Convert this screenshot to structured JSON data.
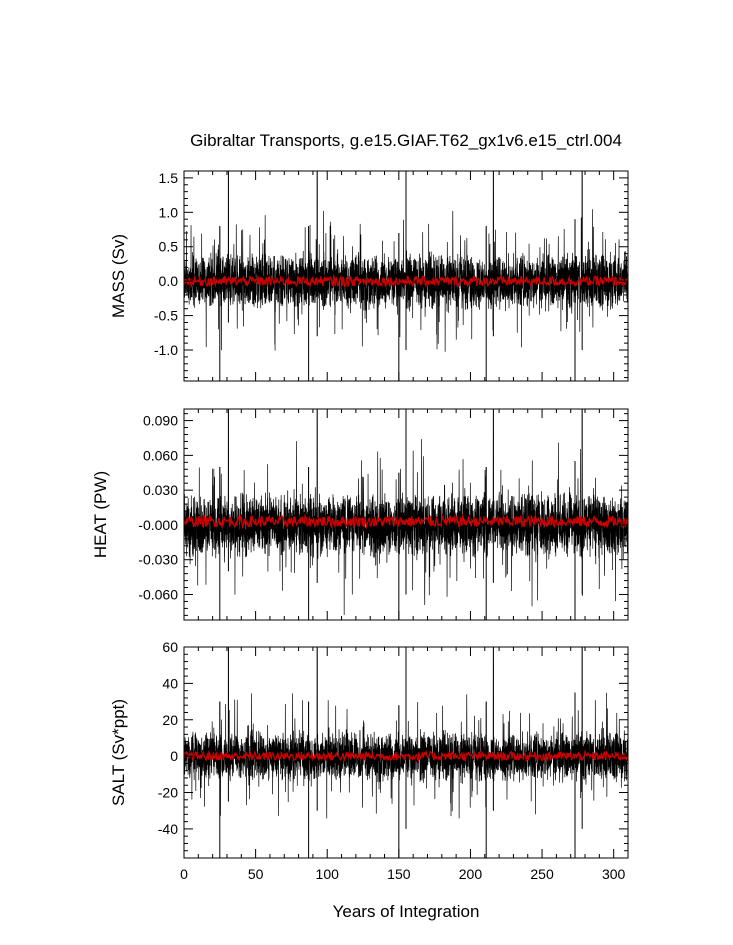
{
  "figure": {
    "title": "Gibraltar Transports, g.e15.GIAF.T62_gx1v6.e15_ctrl.004",
    "xlabel": "Years of Integration"
  },
  "chart_data": [
    {
      "type": "line",
      "title": "Gibraltar Transports, g.e15.GIAF.T62_gx1v6.e15_ctrl.004",
      "ylabel": "MASS (Sv)",
      "xlabel": "",
      "xlim": [
        0,
        310
      ],
      "ylim": [
        -1.45,
        1.6
      ],
      "xticks": [
        0,
        50,
        100,
        150,
        200,
        250,
        300
      ],
      "yticks": [
        -1.0,
        -0.5,
        0.0,
        0.5,
        1.0,
        1.5
      ],
      "ytick_labels": [
        "-1.0",
        "-0.5",
        "0.0",
        "0.5",
        "1.0",
        "1.5"
      ],
      "ymajor_step": 0.5,
      "yminor_step": 0.1,
      "typical_envelope": [
        -0.3,
        0.3
      ],
      "bursts": [
        {
          "x": 31,
          "up": 1.6,
          "down": -0.6
        },
        {
          "x": 25,
          "up": 0.8,
          "down": -1.45
        },
        {
          "x": 93,
          "up": 1.6,
          "down": -0.8
        },
        {
          "x": 87,
          "up": 0.8,
          "down": -1.45
        },
        {
          "x": 155,
          "up": 1.6,
          "down": -1.0
        },
        {
          "x": 150,
          "up": 0.7,
          "down": -1.45
        },
        {
          "x": 216,
          "up": 1.6,
          "down": -0.8
        },
        {
          "x": 211,
          "up": 0.8,
          "down": -1.45
        },
        {
          "x": 278,
          "up": 1.6,
          "down": -1.0
        },
        {
          "x": 273,
          "up": 0.9,
          "down": -1.45
        }
      ],
      "series": [
        {
          "color": "#000000",
          "description_kind": "monthly",
          "approx_values": [
            [
              0,
              0.2
            ],
            [
              20,
              -0.2
            ],
            [
              50,
              0.1
            ],
            [
              100,
              -0.1
            ],
            [
              150,
              0.05
            ],
            [
              200,
              -0.05
            ],
            [
              250,
              0.1
            ],
            [
              300,
              -0.1
            ],
            [
              310,
              0.0
            ]
          ]
        },
        {
          "color": "#cc0000",
          "description_kind": "annual",
          "approx_values": [
            [
              0,
              0.0
            ],
            [
              50,
              0.0
            ],
            [
              100,
              0.0
            ],
            [
              150,
              0.0
            ],
            [
              200,
              0.0
            ],
            [
              250,
              0.0
            ],
            [
              300,
              0.0
            ],
            [
              310,
              0.0
            ]
          ]
        }
      ]
    },
    {
      "type": "line",
      "ylabel": "HEAT (PW)",
      "xlabel": "",
      "xlim": [
        0,
        310
      ],
      "ylim": [
        -0.082,
        0.1
      ],
      "xticks": [
        0,
        50,
        100,
        150,
        200,
        250,
        300
      ],
      "yticks": [
        -0.06,
        -0.03,
        0.0,
        0.03,
        0.06,
        0.09
      ],
      "ytick_labels": [
        "-0.060",
        "-0.030",
        "-0.000",
        "0.030",
        "0.060",
        "0.090"
      ],
      "ymajor_step": 0.03,
      "yminor_step": 0.006,
      "typical_envelope": [
        -0.02,
        0.02
      ],
      "bursts": [
        {
          "x": 31,
          "up": 0.1,
          "down": -0.04
        },
        {
          "x": 25,
          "up": 0.05,
          "down": -0.082
        },
        {
          "x": 93,
          "up": 0.1,
          "down": -0.05
        },
        {
          "x": 87,
          "up": 0.05,
          "down": -0.082
        },
        {
          "x": 155,
          "up": 0.1,
          "down": -0.06
        },
        {
          "x": 150,
          "up": 0.045,
          "down": -0.082
        },
        {
          "x": 216,
          "up": 0.1,
          "down": -0.05
        },
        {
          "x": 211,
          "up": 0.05,
          "down": -0.082
        },
        {
          "x": 278,
          "up": 0.1,
          "down": -0.06
        },
        {
          "x": 273,
          "up": 0.055,
          "down": -0.082
        }
      ],
      "series": [
        {
          "color": "#000000",
          "description_kind": "monthly",
          "approx_values": [
            [
              0,
              0.01
            ],
            [
              50,
              -0.01
            ],
            [
              100,
              0.01
            ],
            [
              150,
              -0.01
            ],
            [
              200,
              0.01
            ],
            [
              250,
              -0.01
            ],
            [
              300,
              0.01
            ],
            [
              310,
              0.0
            ]
          ]
        },
        {
          "color": "#cc0000",
          "description_kind": "annual",
          "approx_values": [
            [
              0,
              0.003
            ],
            [
              50,
              0.003
            ],
            [
              100,
              0.003
            ],
            [
              150,
              0.003
            ],
            [
              200,
              0.003
            ],
            [
              250,
              0.003
            ],
            [
              300,
              0.003
            ],
            [
              310,
              0.003
            ]
          ]
        }
      ]
    },
    {
      "type": "line",
      "ylabel": "SALT (Sv*ppt)",
      "xlabel": "Years of Integration",
      "xlim": [
        0,
        310
      ],
      "ylim": [
        -56,
        60
      ],
      "xticks": [
        0,
        50,
        100,
        150,
        200,
        250,
        300
      ],
      "yticks": [
        -40,
        -20,
        0,
        20,
        40,
        60
      ],
      "ytick_labels": [
        "-40",
        "-20",
        "0",
        "20",
        "40",
        "60"
      ],
      "ymajor_step": 20,
      "yminor_step": 4,
      "typical_envelope": [
        -10,
        10
      ],
      "bursts": [
        {
          "x": 31,
          "up": 60,
          "down": -25
        },
        {
          "x": 25,
          "up": 30,
          "down": -56
        },
        {
          "x": 93,
          "up": 60,
          "down": -30
        },
        {
          "x": 87,
          "up": 30,
          "down": -56
        },
        {
          "x": 155,
          "up": 60,
          "down": -40
        },
        {
          "x": 150,
          "up": 28,
          "down": -56
        },
        {
          "x": 216,
          "up": 60,
          "down": -30
        },
        {
          "x": 211,
          "up": 30,
          "down": -56
        },
        {
          "x": 278,
          "up": 60,
          "down": -40
        },
        {
          "x": 273,
          "up": 35,
          "down": -56
        }
      ],
      "series": [
        {
          "color": "#000000",
          "description_kind": "monthly",
          "approx_values": [
            [
              0,
              5
            ],
            [
              50,
              -5
            ],
            [
              100,
              5
            ],
            [
              150,
              -5
            ],
            [
              200,
              5
            ],
            [
              250,
              -5
            ],
            [
              300,
              5
            ],
            [
              310,
              0
            ]
          ]
        },
        {
          "color": "#cc0000",
          "description_kind": "annual",
          "approx_values": [
            [
              0,
              0
            ],
            [
              50,
              0
            ],
            [
              100,
              0
            ],
            [
              150,
              0
            ],
            [
              200,
              0
            ],
            [
              250,
              0
            ],
            [
              300,
              0
            ],
            [
              310,
              0
            ]
          ]
        }
      ]
    }
  ]
}
